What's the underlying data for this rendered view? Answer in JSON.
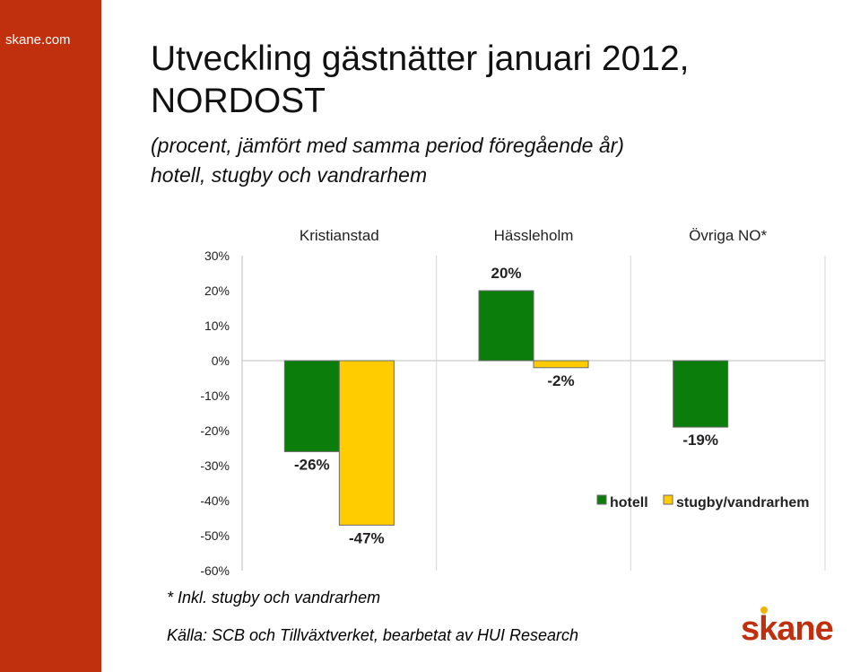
{
  "site": {
    "label": "skane.com"
  },
  "header": {
    "title_line1": "Utveckling gästnätter januari 2012,",
    "title_line2": "NORDOST",
    "subtitle_line1": "(procent, jämfört med samma period föregående år)",
    "subtitle_line2": "hotell, stugby och vandrarhem"
  },
  "chart_data": {
    "type": "bar",
    "categories": [
      "Kristianstad",
      "Hässleholm",
      "Övriga NO*"
    ],
    "series": [
      {
        "name": "hotell",
        "values": [
          -26,
          20,
          -19
        ],
        "color": "#0a7d0a"
      },
      {
        "name": "stugby/vandrarhem",
        "values": [
          -47,
          -2,
          null
        ],
        "color": "#ffcc00"
      }
    ],
    "data_labels": [
      [
        "-26%",
        "20%",
        "-19%"
      ],
      [
        "-47%",
        "-2%",
        ""
      ]
    ],
    "y_ticks": [
      "30%",
      "20%",
      "10%",
      "0%",
      "-10%",
      "-20%",
      "-30%",
      "-40%",
      "-50%",
      "-60%"
    ],
    "y_tick_values": [
      30,
      20,
      10,
      0,
      -10,
      -20,
      -30,
      -40,
      -50,
      -60
    ],
    "ylim": [
      -60,
      30
    ],
    "grid": false,
    "legend_position": "lower-right"
  },
  "footer": {
    "footnote": "* Inkl. stugby och vandrarhem",
    "source": "Källa: SCB och Tillväxtverket, bearbetat av HUI Research"
  },
  "logo": {
    "text": "skane",
    "color": "#c0300e",
    "dot_color": "#f0b400"
  }
}
